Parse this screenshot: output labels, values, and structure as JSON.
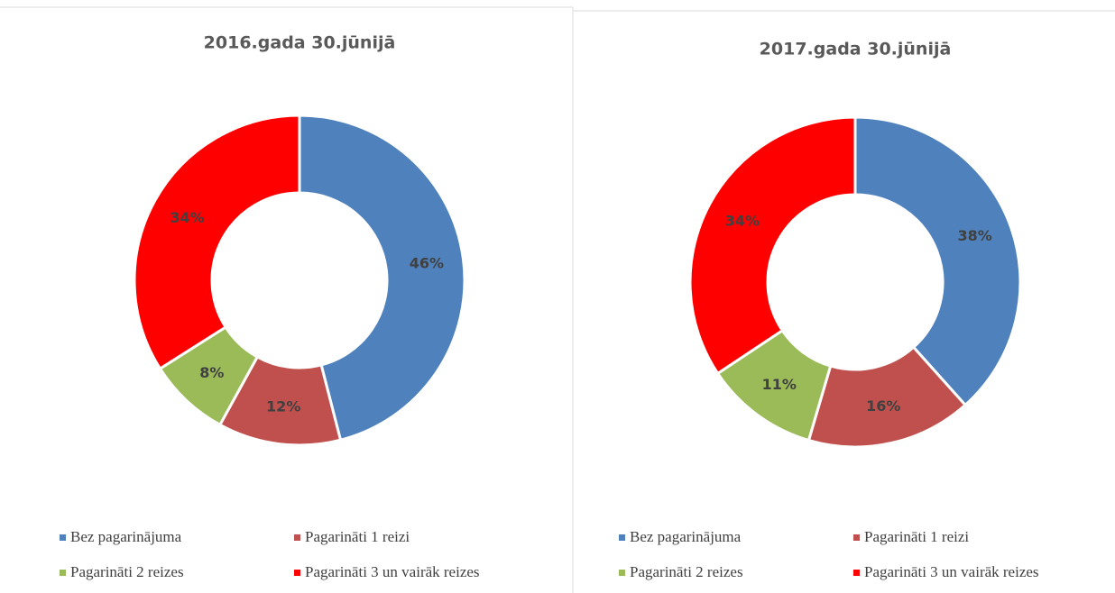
{
  "chart_data": [
    {
      "type": "donut",
      "title": "2016.gada 30.jūnijā",
      "categories": [
        "Bez pagarinājuma",
        "Pagarināti 1 reizi",
        "Pagarināti 2 reizes",
        "Pagarināti 3 un vairāk reizes"
      ],
      "values": [
        46,
        12,
        8,
        34
      ],
      "value_labels": [
        "46%",
        "12%",
        "8%",
        "34%"
      ],
      "colors": [
        "#4f81bd",
        "#c0504d",
        "#9bbb59",
        "#ff0000"
      ]
    },
    {
      "type": "donut",
      "title": "2017.gada 30.jūnijā",
      "categories": [
        "Bez pagarinājuma",
        "Pagarināti 1 reizi",
        "Pagarināti 2 reizes",
        "Pagarināti 3 un vairāk reizes"
      ],
      "values": [
        38,
        16,
        11,
        34
      ],
      "value_labels": [
        "38%",
        "16%",
        "11%",
        "34%"
      ],
      "colors": [
        "#4f81bd",
        "#c0504d",
        "#9bbb59",
        "#ff0000"
      ]
    }
  ]
}
